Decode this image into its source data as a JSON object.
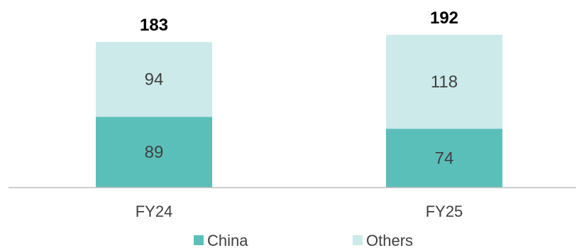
{
  "chart_data": {
    "type": "bar",
    "stacked": true,
    "categories": [
      "FY24",
      "FY25"
    ],
    "series": [
      {
        "name": "China",
        "values": [
          89,
          74
        ],
        "color": "#5bbfb9"
      },
      {
        "name": "Others",
        "values": [
          94,
          118
        ],
        "color": "#cdeaea"
      }
    ],
    "totals": [
      183,
      192
    ],
    "title": "",
    "xlabel": "",
    "ylabel": "",
    "ylim": [
      0,
      192
    ],
    "grid": false,
    "legend": {
      "position": "bottom"
    },
    "axis_color": "#bfbfbf"
  }
}
